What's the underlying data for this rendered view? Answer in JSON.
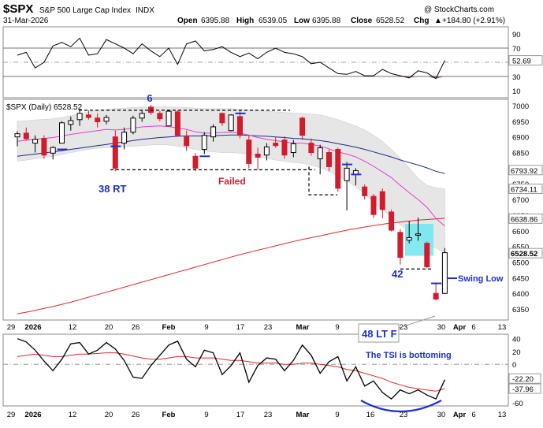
{
  "header": {
    "symbol": "$SPX",
    "name": "S&P 500 Large Cap Index",
    "exchange": "INDX",
    "date": "31-Mar-2026",
    "watermark": "@ StockCharts.com",
    "open_label": "Open",
    "open": "6395.88",
    "high_label": "High",
    "high": "6539.05",
    "low_label": "Low",
    "low": "6395.88",
    "close_label": "Close",
    "close": "6528.52",
    "chg_label": "Chg",
    "chg": "+184.80 (+2.91%)",
    "chg_arrow": "▲"
  },
  "colors": {
    "up": "#000000",
    "down": "#d01c2c",
    "ma20": "#e23fd3",
    "ma50": "#1b2a8e",
    "ma200": "#e0282c",
    "annot_blue": "#1c2fd0",
    "annot_red": "#d0202a",
    "band": "#e6e6e6",
    "cyan": "#6ee6f0",
    "rsi_fill": "#9c6464"
  },
  "x_axis": {
    "ticks": [
      "29",
      "2026",
      "12",
      "20",
      "26",
      "Feb",
      "9",
      "17",
      "23",
      "Mar",
      "9",
      "16",
      "23",
      "30",
      "Apr",
      "6",
      "13"
    ]
  },
  "chart_data": [
    {
      "type": "line",
      "panel": "RSI",
      "y_ticks": [
        90,
        70,
        50,
        30,
        10
      ],
      "ylim": [
        0,
        100
      ],
      "value_badge": "52.69",
      "values": [
        60,
        64,
        42,
        50,
        73,
        78,
        72,
        84,
        60,
        62,
        82,
        76,
        70,
        62,
        76,
        66,
        58,
        70,
        47,
        76,
        80,
        66,
        68,
        72,
        64,
        58,
        63,
        55,
        64,
        70,
        64,
        62,
        58,
        48,
        50,
        42,
        34,
        33,
        37,
        31,
        31,
        40,
        34,
        31,
        28,
        38,
        35,
        27,
        52.69
      ]
    },
    {
      "type": "candlestick",
      "panel": "price",
      "legend": "$SPX (Daily) 6528.52",
      "y_ticks": [
        7000,
        6950,
        6900,
        6850,
        6750,
        6700,
        6650,
        6600,
        6550,
        6500,
        6450,
        6400,
        6350
      ],
      "ylim": [
        6315,
        7020
      ],
      "right_badges": [
        "6793.92",
        "6734.11",
        "6638.86",
        "6528.52"
      ],
      "candles": [
        {
          "o": 6900,
          "h": 6918,
          "l": 6870,
          "c": 6910
        },
        {
          "o": 6912,
          "h": 6930,
          "l": 6890,
          "c": 6894
        },
        {
          "o": 6880,
          "h": 6905,
          "l": 6850,
          "c": 6892
        },
        {
          "o": 6895,
          "h": 6905,
          "l": 6830,
          "c": 6842
        },
        {
          "o": 6848,
          "h": 6870,
          "l": 6828,
          "c": 6866
        },
        {
          "o": 6880,
          "h": 6950,
          "l": 6880,
          "c": 6945
        },
        {
          "o": 6940,
          "h": 6965,
          "l": 6920,
          "c": 6952
        },
        {
          "o": 6955,
          "h": 6985,
          "l": 6935,
          "c": 6975
        },
        {
          "o": 6970,
          "h": 6985,
          "l": 6955,
          "c": 6962
        },
        {
          "o": 6960,
          "h": 6975,
          "l": 6930,
          "c": 6948
        },
        {
          "o": 6950,
          "h": 6970,
          "l": 6940,
          "c": 6962
        },
        {
          "o": 6900,
          "h": 6920,
          "l": 6790,
          "c": 6800
        },
        {
          "o": 6880,
          "h": 6930,
          "l": 6860,
          "c": 6915
        },
        {
          "o": 6915,
          "h": 6968,
          "l": 6908,
          "c": 6960
        },
        {
          "o": 6960,
          "h": 6985,
          "l": 6948,
          "c": 6975
        },
        {
          "o": 6995,
          "h": 7002,
          "l": 6970,
          "c": 6978
        },
        {
          "o": 6975,
          "h": 6982,
          "l": 6950,
          "c": 6958
        },
        {
          "o": 6935,
          "h": 6985,
          "l": 6935,
          "c": 6982
        },
        {
          "o": 6980,
          "h": 6985,
          "l": 6900,
          "c": 6905
        },
        {
          "o": 6900,
          "h": 6920,
          "l": 6855,
          "c": 6872
        },
        {
          "o": 6838,
          "h": 6848,
          "l": 6790,
          "c": 6800
        },
        {
          "o": 6860,
          "h": 6915,
          "l": 6845,
          "c": 6905
        },
        {
          "o": 6900,
          "h": 6940,
          "l": 6885,
          "c": 6932
        },
        {
          "o": 6975,
          "h": 6978,
          "l": 6935,
          "c": 6945
        },
        {
          "o": 6920,
          "h": 6972,
          "l": 6918,
          "c": 6970
        },
        {
          "o": 6965,
          "h": 6985,
          "l": 6895,
          "c": 6905
        },
        {
          "o": 6890,
          "h": 6905,
          "l": 6800,
          "c": 6815
        },
        {
          "o": 6845,
          "h": 6865,
          "l": 6795,
          "c": 6835
        },
        {
          "o": 6842,
          "h": 6880,
          "l": 6825,
          "c": 6868
        },
        {
          "o": 6880,
          "h": 6900,
          "l": 6865,
          "c": 6872
        },
        {
          "o": 6890,
          "h": 6902,
          "l": 6830,
          "c": 6842
        },
        {
          "o": 6850,
          "h": 6890,
          "l": 6835,
          "c": 6878
        },
        {
          "o": 6960,
          "h": 6965,
          "l": 6890,
          "c": 6905
        },
        {
          "o": 6880,
          "h": 6895,
          "l": 6840,
          "c": 6850
        },
        {
          "o": 6830,
          "h": 6875,
          "l": 6780,
          "c": 6865
        },
        {
          "o": 6850,
          "h": 6860,
          "l": 6790,
          "c": 6805
        },
        {
          "o": 6860,
          "h": 6865,
          "l": 6725,
          "c": 6736
        },
        {
          "o": 6760,
          "h": 6820,
          "l": 6665,
          "c": 6800
        },
        {
          "o": 6780,
          "h": 6800,
          "l": 6745,
          "c": 6792
        },
        {
          "o": 6740,
          "h": 6748,
          "l": 6700,
          "c": 6712
        },
        {
          "o": 6710,
          "h": 6718,
          "l": 6642,
          "c": 6652
        },
        {
          "o": 6725,
          "h": 6735,
          "l": 6640,
          "c": 6668
        },
        {
          "o": 6660,
          "h": 6668,
          "l": 6598,
          "c": 6602
        },
        {
          "o": 6595,
          "h": 6605,
          "l": 6492,
          "c": 6515
        },
        {
          "o": 6570,
          "h": 6632,
          "l": 6560,
          "c": 6578
        },
        {
          "o": 6586,
          "h": 6642,
          "l": 6568,
          "c": 6590
        },
        {
          "o": 6560,
          "h": 6565,
          "l": 6480,
          "c": 6485
        },
        {
          "o": 6400,
          "h": 6435,
          "l": 6378,
          "c": 6382
        },
        {
          "o": 6400,
          "h": 6545,
          "l": 6398,
          "c": 6530
        }
      ],
      "ma20": [
        6886,
        6889,
        6892,
        6895,
        6898,
        6903,
        6908,
        6912,
        6916,
        6920,
        6924,
        6922,
        6924,
        6928,
        6932,
        6934,
        6935,
        6933,
        6928,
        6924,
        6916,
        6912,
        6912,
        6914,
        6915,
        6912,
        6906,
        6898,
        6892,
        6888,
        6884,
        6880,
        6880,
        6876,
        6871,
        6862,
        6852,
        6845,
        6836,
        6822,
        6806,
        6788,
        6770,
        6745,
        6722,
        6700,
        6675,
        6640,
        6615
      ],
      "ma50": [
        6838,
        6842,
        6845,
        6849,
        6852,
        6856,
        6860,
        6864,
        6868,
        6872,
        6876,
        6880,
        6884,
        6888,
        6892,
        6895,
        6898,
        6900,
        6902,
        6903,
        6903,
        6903,
        6904,
        6905,
        6906,
        6906,
        6905,
        6903,
        6902,
        6900,
        6898,
        6895,
        6894,
        6891,
        6888,
        6884,
        6878,
        6873,
        6867,
        6860,
        6852,
        6844,
        6836,
        6826,
        6818,
        6810,
        6801,
        6790,
        6783
      ],
      "ma200": [
        6335,
        6340,
        6346,
        6352,
        6358,
        6365,
        6372,
        6380,
        6388,
        6396,
        6404,
        6412,
        6420,
        6428,
        6436,
        6444,
        6452,
        6460,
        6468,
        6476,
        6484,
        6492,
        6500,
        6508,
        6516,
        6524,
        6531,
        6538,
        6545,
        6552,
        6559,
        6566,
        6572,
        6578,
        6584,
        6590,
        6596,
        6602,
        6607,
        6612,
        6617,
        6621,
        6625,
        6628,
        6631,
        6634,
        6636,
        6638,
        6640
      ],
      "band_upper": [
        6950,
        6952,
        6954,
        6956,
        6958,
        6962,
        6968,
        6974,
        6980,
        6984,
        6988,
        6990,
        6992,
        6994,
        6995,
        6996,
        6996,
        6996,
        6995,
        6994,
        6992,
        6990,
        6990,
        6990,
        6990,
        6988,
        6986,
        6984,
        6982,
        6980,
        6978,
        6976,
        6975,
        6973,
        6970,
        6964,
        6955,
        6945,
        6935,
        6922,
        6905,
        6885,
        6860,
        6832,
        6800,
        6768,
        6745,
        6738,
        6734
      ],
      "band_lower": [
        6822,
        6826,
        6830,
        6834,
        6838,
        6844,
        6850,
        6855,
        6860,
        6864,
        6866,
        6866,
        6868,
        6870,
        6872,
        6874,
        6875,
        6874,
        6870,
        6866,
        6860,
        6855,
        6852,
        6850,
        6850,
        6848,
        6844,
        6838,
        6832,
        6826,
        6822,
        6818,
        6816,
        6810,
        6802,
        6790,
        6775,
        6760,
        6740,
        6718,
        6692,
        6668,
        6645,
        6620,
        6598,
        6578,
        6560,
        6545,
        6530
      ]
    },
    {
      "type": "line",
      "panel": "TSI",
      "y_ticks": [
        40,
        20,
        0,
        -20,
        -40,
        -60
      ],
      "ylim": [
        -65,
        47
      ],
      "badges": [
        "-22.20",
        "-37.96"
      ],
      "tsi": [
        40,
        35,
        22,
        5,
        -10,
        8,
        32,
        34,
        16,
        22,
        34,
        24,
        6,
        -20,
        -22,
        -2,
        14,
        30,
        36,
        8,
        -4,
        22,
        18,
        -16,
        -2,
        18,
        -28,
        -2,
        10,
        8,
        -10,
        6,
        30,
        14,
        -14,
        4,
        12,
        -26,
        -4,
        -34,
        -26,
        -44,
        -54,
        -40,
        -46,
        -40,
        -48,
        -54,
        -24
      ],
      "signal": [
        12,
        14,
        16,
        14,
        12,
        12,
        14,
        16,
        16,
        17,
        18,
        18,
        16,
        13,
        10,
        8,
        8,
        10,
        12,
        12,
        10,
        10,
        10,
        8,
        6,
        6,
        4,
        2,
        2,
        2,
        0,
        0,
        2,
        2,
        0,
        -2,
        -4,
        -8,
        -10,
        -14,
        -18,
        -22,
        -28,
        -32,
        -36,
        -38,
        -40,
        -42,
        -38
      ]
    }
  ],
  "annotations": {
    "label_6": "6",
    "label_38rt": "38 RT",
    "label_failed": "Failed",
    "label_42": "42",
    "label_swing_low": "Swing Low",
    "label_48ltf": "48 LT F",
    "label_tsi": "The TSI is bottoming"
  }
}
